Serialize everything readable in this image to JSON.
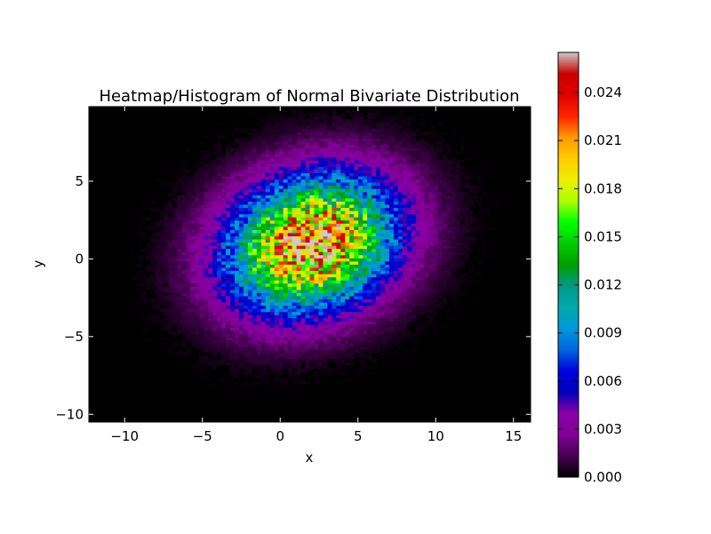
{
  "chart_data": {
    "type": "heatmap",
    "title": "Heatmap/Histogram of Normal Bivariate Distribution",
    "xlabel": "x",
    "ylabel": "y",
    "xlim": [
      -12.3,
      16.1
    ],
    "ylim": [
      -10.5,
      9.8
    ],
    "xticks": [
      -10,
      -5,
      0,
      5,
      10,
      15
    ],
    "xtick_labels": [
      "−10",
      "−5",
      "0",
      "5",
      "10",
      "15"
    ],
    "yticks": [
      5,
      0,
      -5,
      -10
    ],
    "ytick_labels": [
      "5",
      "0",
      "−5",
      "−10"
    ],
    "colormap": "nipy_spectral",
    "colorbar": {
      "min": 0.0,
      "max": 0.0265,
      "ticks": [
        0.0,
        0.003,
        0.006,
        0.009,
        0.012,
        0.015,
        0.018,
        0.021,
        0.024
      ],
      "tick_labels": [
        "0.000",
        "0.003",
        "0.006",
        "0.009",
        "0.012",
        "0.015",
        "0.018",
        "0.021",
        "0.024"
      ]
    },
    "distribution": {
      "mean_x": 2.0,
      "mean_y": 1.0,
      "std_x": 3.6,
      "std_y": 2.9,
      "rho": 0.18,
      "peak_density": 0.024
    },
    "background_color": "#000000"
  }
}
